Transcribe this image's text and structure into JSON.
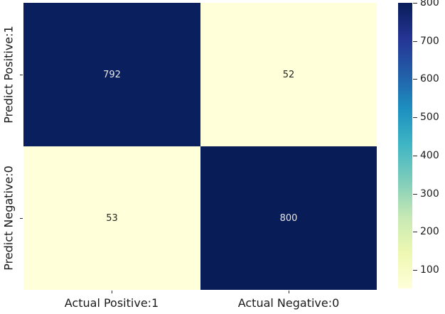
{
  "chart_data": {
    "type": "heatmap",
    "colormap": "YlGnBu",
    "x_categories": [
      "Actual Positive:1",
      "Actual Negative:0"
    ],
    "y_categories": [
      "Predict Positive:1",
      "Predict Negative:0"
    ],
    "values": [
      [
        792,
        52
      ],
      [
        53,
        800
      ]
    ],
    "cell_colors": [
      [
        "#0a1f5d",
        "#ffffd9"
      ],
      [
        "#ffffd9",
        "#081d58"
      ]
    ],
    "annot_colors": [
      [
        "#e8e8e8",
        "#262626"
      ],
      [
        "#262626",
        "#e8e8e8"
      ]
    ],
    "colorbar": {
      "min": 52,
      "max": 800,
      "ticks": [
        100,
        200,
        300,
        400,
        500,
        600,
        700,
        800
      ],
      "gradient": [
        "#ffffd9 0%",
        "#edf8b1 12.5%",
        "#c7e9b4 25%",
        "#7fcdbb 37.5%",
        "#41b6c4 50%",
        "#1d91c0 62.5%",
        "#225ea8 75%",
        "#253494 87.5%",
        "#081d58 100%"
      ],
      "legend_position": "right"
    },
    "grid": false,
    "title": "",
    "xlabel": "",
    "ylabel": ""
  }
}
